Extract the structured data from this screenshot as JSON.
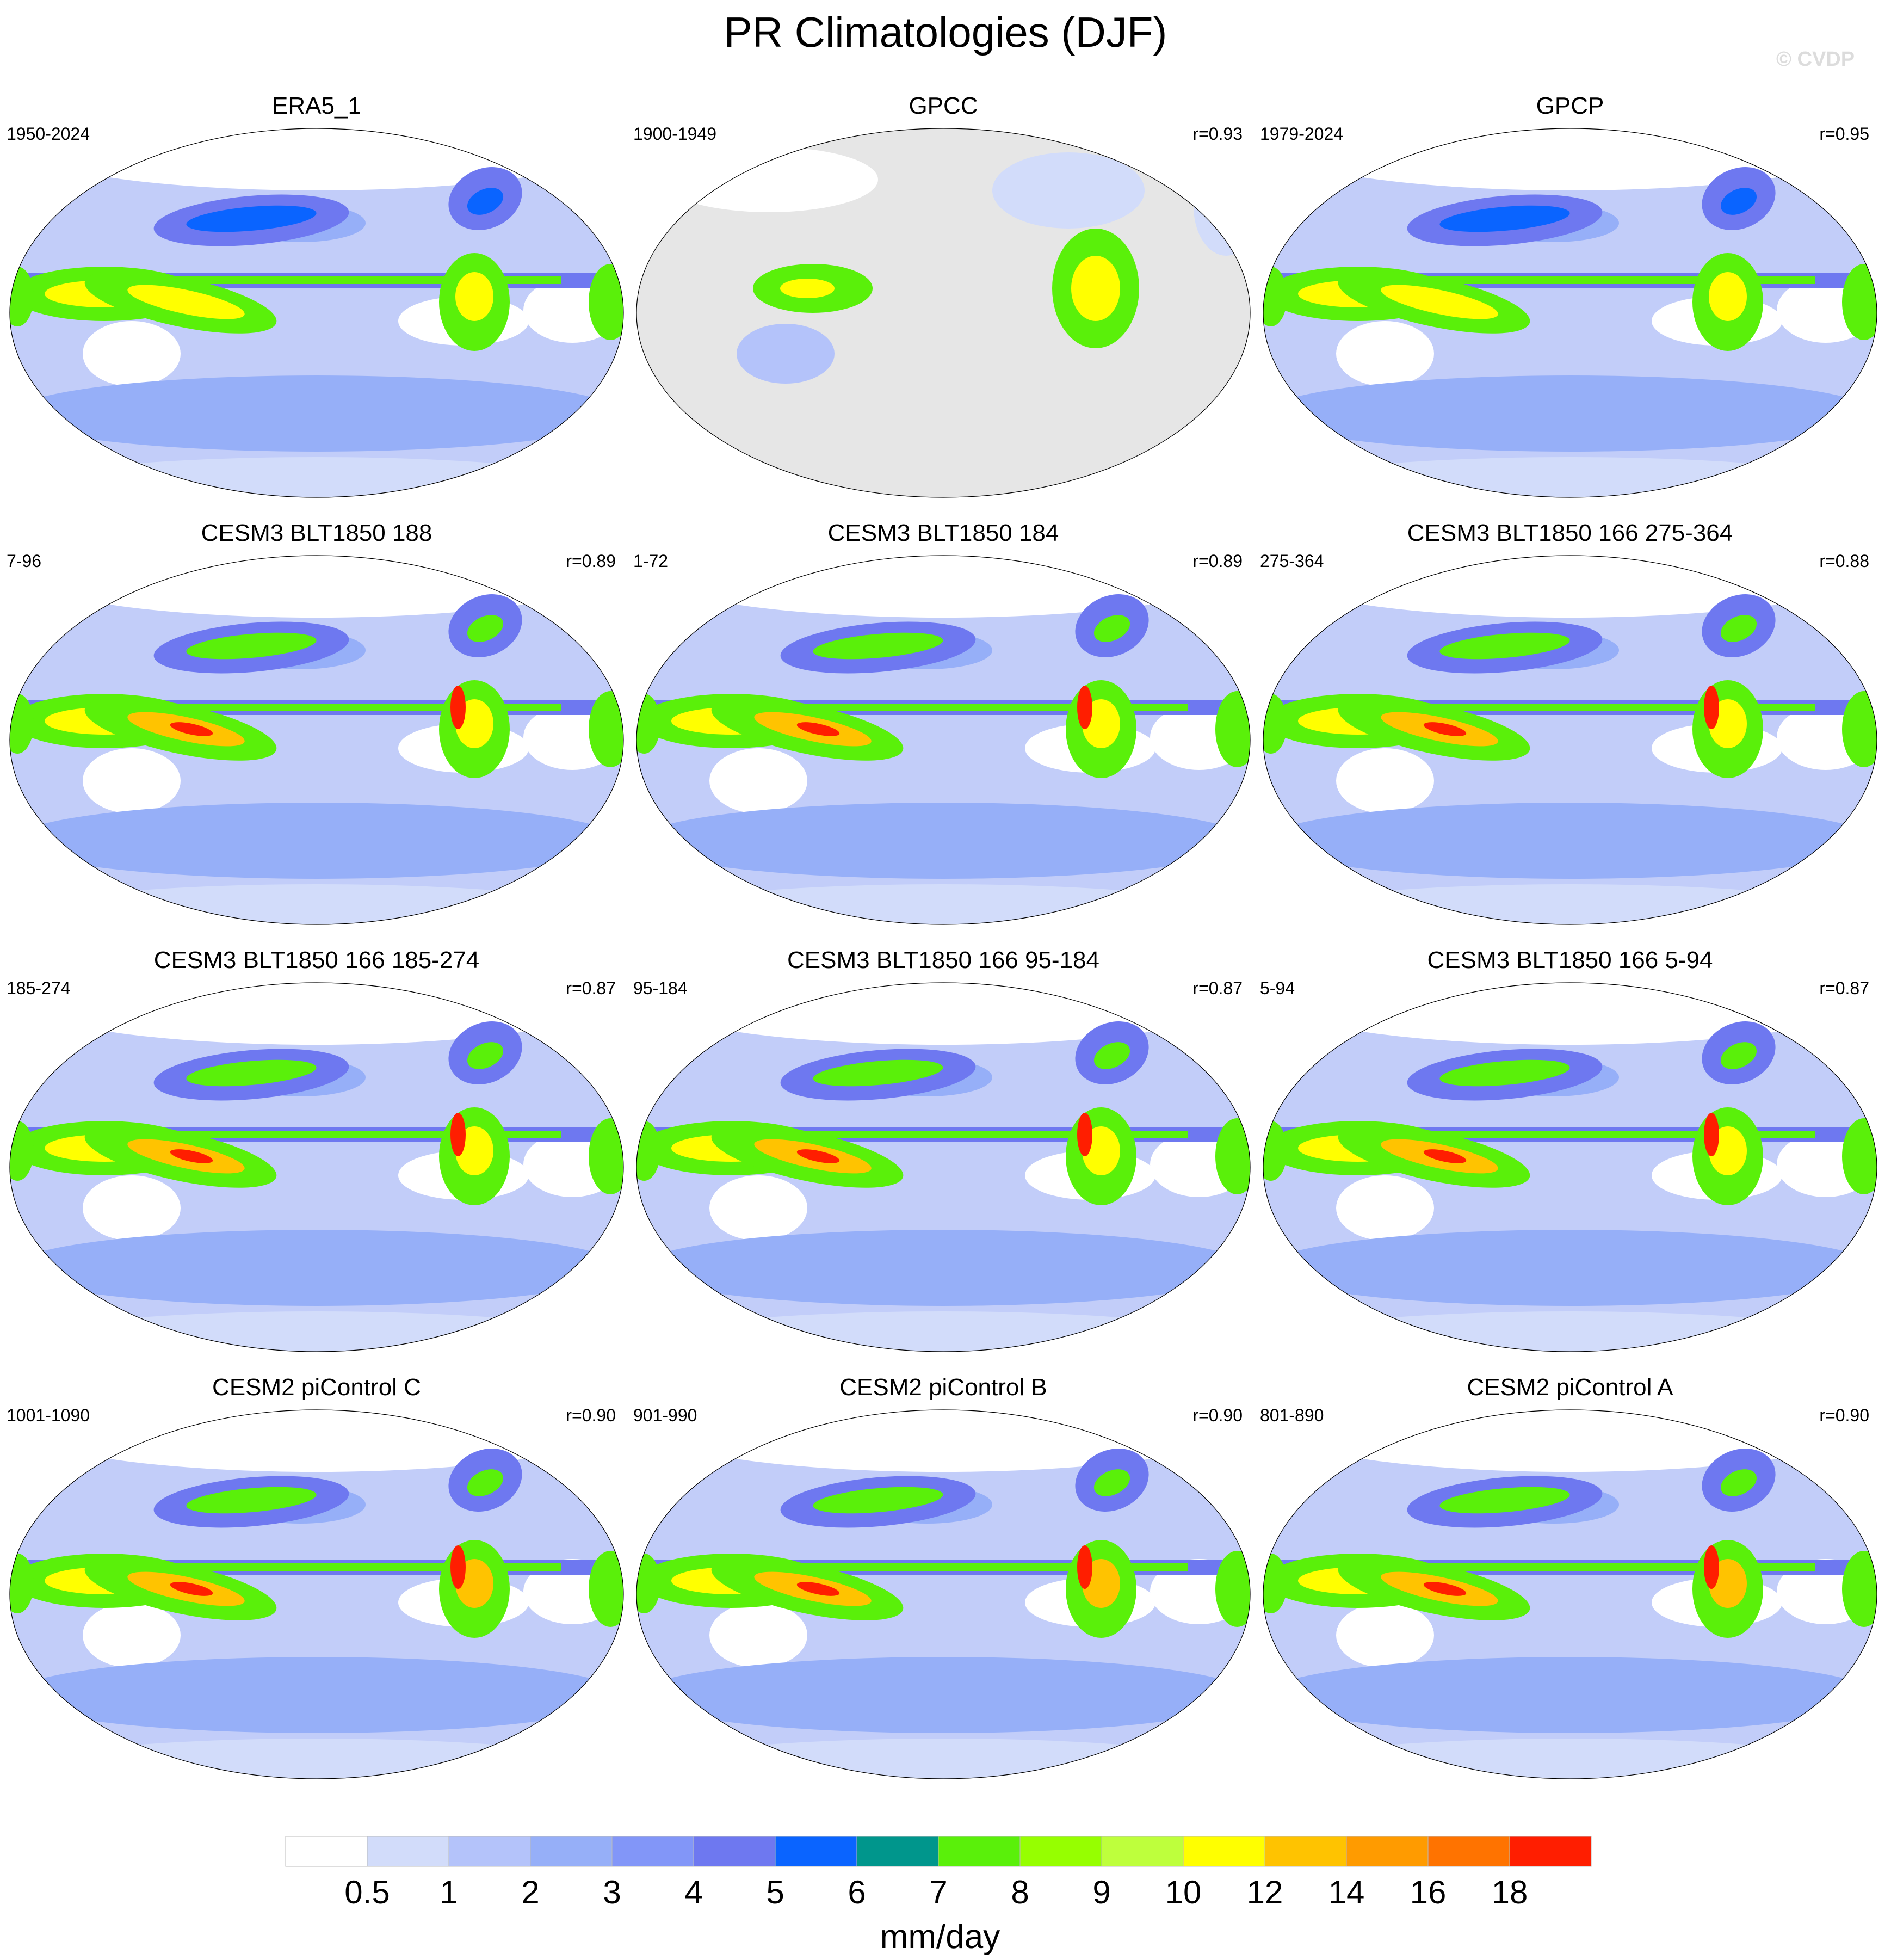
{
  "title": "PR Climatologies (DJF)",
  "watermark": "© CVDP",
  "panels": [
    {
      "name": "ERA5_1",
      "period": "1950-2024",
      "r": "",
      "variant": "obs"
    },
    {
      "name": "GPCC",
      "period": "1900-1949",
      "r": "r=0.93",
      "variant": "gpcc"
    },
    {
      "name": "GPCP",
      "period": "1979-2024",
      "r": "r=0.95",
      "variant": "obs"
    },
    {
      "name": "CESM3 BLT1850 188",
      "period": "7-96",
      "r": "r=0.89",
      "variant": "cesm3"
    },
    {
      "name": "CESM3 BLT1850 184",
      "period": "1-72",
      "r": "r=0.89",
      "variant": "cesm3"
    },
    {
      "name": "CESM3 BLT1850 166 275-364",
      "period": "275-364",
      "r": "r=0.88",
      "variant": "cesm3"
    },
    {
      "name": "CESM3 BLT1850 166 185-274",
      "period": "185-274",
      "r": "r=0.87",
      "variant": "cesm3"
    },
    {
      "name": "CESM3 BLT1850 166 95-184",
      "period": "95-184",
      "r": "r=0.87",
      "variant": "cesm3"
    },
    {
      "name": "CESM3 BLT1850 166 5-94",
      "period": "5-94",
      "r": "r=0.87",
      "variant": "cesm3"
    },
    {
      "name": "CESM2 piControl C",
      "period": "1001-1090",
      "r": "r=0.90",
      "variant": "cesm2"
    },
    {
      "name": "CESM2 piControl B",
      "period": "901-990",
      "r": "r=0.90",
      "variant": "cesm2"
    },
    {
      "name": "CESM2 piControl A",
      "period": "801-890",
      "r": "r=0.90",
      "variant": "cesm2"
    }
  ],
  "colorbar": {
    "label": "mm/day",
    "ticks": [
      "0.5",
      "1",
      "2",
      "3",
      "4",
      "5",
      "6",
      "7",
      "8",
      "9",
      "10",
      "12",
      "14",
      "16",
      "18"
    ],
    "colors": [
      "#ffffff",
      "#d2dcfa",
      "#b4c3fa",
      "#96aff8",
      "#8296f8",
      "#6e78f0",
      "#0a64ff",
      "#00968c",
      "#5af00a",
      "#96ff00",
      "#beff3c",
      "#ffff00",
      "#ffc300",
      "#ff9b00",
      "#ff7300",
      "#ff1e00"
    ]
  },
  "map_colors": {
    "ocean_low": "#c2cdf9",
    "ocean_mid": "#96aff8",
    "dry": "#ffffff",
    "storm": "#6e78f0",
    "storm_core": "#0a64ff",
    "itcz": "#5af00a",
    "itcz_core": "#ffff00",
    "peak": "#ff1e00",
    "missing": "#e6e6e6"
  }
}
